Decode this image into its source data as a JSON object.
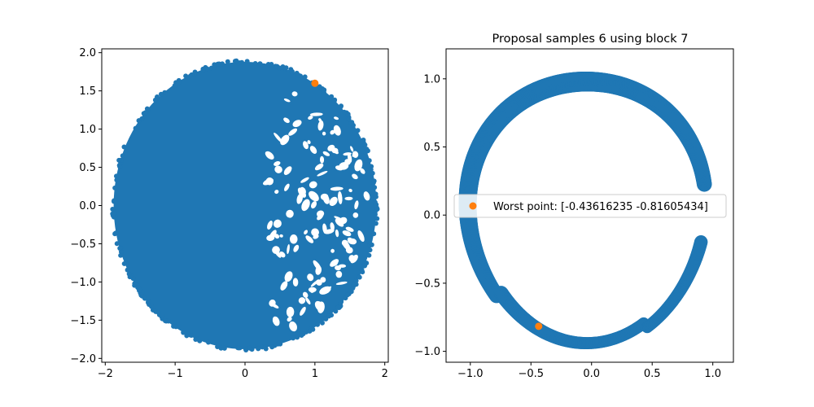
{
  "colors": {
    "samples": "#1f77b4",
    "highlight": "#ff7f0e",
    "axes": "#000000",
    "background": "#ffffff"
  },
  "chart_data": [
    {
      "type": "scatter",
      "title": "",
      "xlabel": "",
      "ylabel": "",
      "xlim": [
        -2.05,
        2.05
      ],
      "ylim": [
        -2.05,
        2.05
      ],
      "xticks": [
        -2,
        -1,
        0,
        1,
        2
      ],
      "yticks": [
        -2.0,
        -1.5,
        -1.0,
        -0.5,
        0.0,
        0.5,
        1.0,
        1.5,
        2.0
      ],
      "xtick_labels": [
        "−2",
        "−1",
        "0",
        "1",
        "2"
      ],
      "ytick_labels": [
        "−2.0",
        "−1.5",
        "−1.0",
        "−0.5",
        "0.0",
        "0.5",
        "1.0",
        "1.5",
        "2.0"
      ],
      "grid": false,
      "series": [
        {
          "kind": "dense-disc",
          "color": "#1f77b4",
          "center": [
            0.0,
            0.0
          ],
          "radius": 1.88,
          "sparse_region_x_min": 0.3,
          "hole_count": 130
        },
        {
          "kind": "point",
          "color": "#ff7f0e",
          "x": 1.0,
          "y": 1.6
        }
      ]
    },
    {
      "type": "scatter",
      "title": "Proposal samples 6 using block 7",
      "xlabel": "",
      "ylabel": "",
      "xlim": [
        -1.2,
        1.17
      ],
      "ylim": [
        -1.08,
        1.22
      ],
      "xticks": [
        -1.0,
        -0.5,
        0.0,
        0.5,
        1.0
      ],
      "yticks": [
        -1.0,
        -0.5,
        0.0,
        0.5,
        1.0
      ],
      "xtick_labels": [
        "−1.0",
        "−0.5",
        "0.0",
        "0.5",
        "1.0"
      ],
      "ytick_labels": [
        "−1.0",
        "−0.5",
        "0.0",
        "0.5",
        "1.0"
      ],
      "grid": false,
      "legend_position": "center-left",
      "series": [
        {
          "kind": "ring-arc",
          "color": "#1f77b4",
          "center": [
            -0.04,
            0.02
          ],
          "radius": 0.98,
          "thickness": 0.14,
          "gap_start_deg": -13,
          "gap_end_deg": 12
        },
        {
          "kind": "point",
          "name": "Worst point: [-0.43616235 -0.81605434]",
          "color": "#ff7f0e",
          "x": -0.43616235,
          "y": -0.81605434
        }
      ]
    }
  ]
}
